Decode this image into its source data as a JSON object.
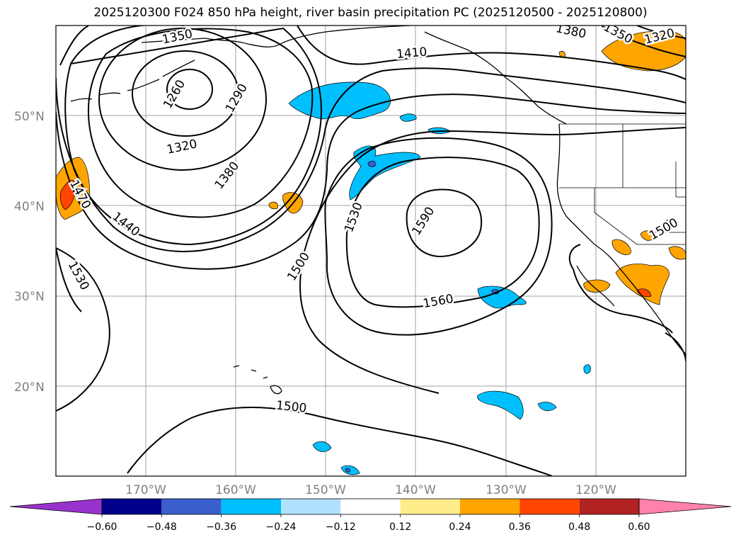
{
  "title": "2025120300 F024 850 hPa height, river basin precipitation PC (2025120500 - 2025120800)",
  "map": {
    "lat_labels": [
      {
        "text": "50°N",
        "lat": 50
      },
      {
        "text": "40°N",
        "lat": 40
      },
      {
        "text": "30°N",
        "lat": 30
      },
      {
        "text": "20°N",
        "lat": 20
      }
    ],
    "lon_labels": [
      {
        "text": "170°W",
        "lon": -170
      },
      {
        "text": "160°W",
        "lon": -160
      },
      {
        "text": "150°W",
        "lon": -150
      },
      {
        "text": "140°W",
        "lon": -140
      },
      {
        "text": "130°W",
        "lon": -130
      },
      {
        "text": "120°W",
        "lon": -120
      }
    ],
    "contour_labels": [
      "1350",
      "1260",
      "1290",
      "1320",
      "1380",
      "1410",
      "1440",
      "1470",
      "1530",
      "1500",
      "1590",
      "1560",
      "1500",
      "1380",
      "1350",
      "1320",
      "1530",
      "1500"
    ]
  },
  "colorbar": {
    "ticks": [
      "−0.60",
      "−0.48",
      "−0.36",
      "−0.24",
      "−0.12",
      "0.12",
      "0.24",
      "0.36",
      "0.48",
      "0.60"
    ],
    "colors": [
      "#9932cc",
      "#00008b",
      "#3a5fcd",
      "#00bfff",
      "#b0e2ff",
      "#ffffff",
      "#ffec8b",
      "#ffa500",
      "#ff4500",
      "#b22222",
      "#ff82ab"
    ]
  }
}
